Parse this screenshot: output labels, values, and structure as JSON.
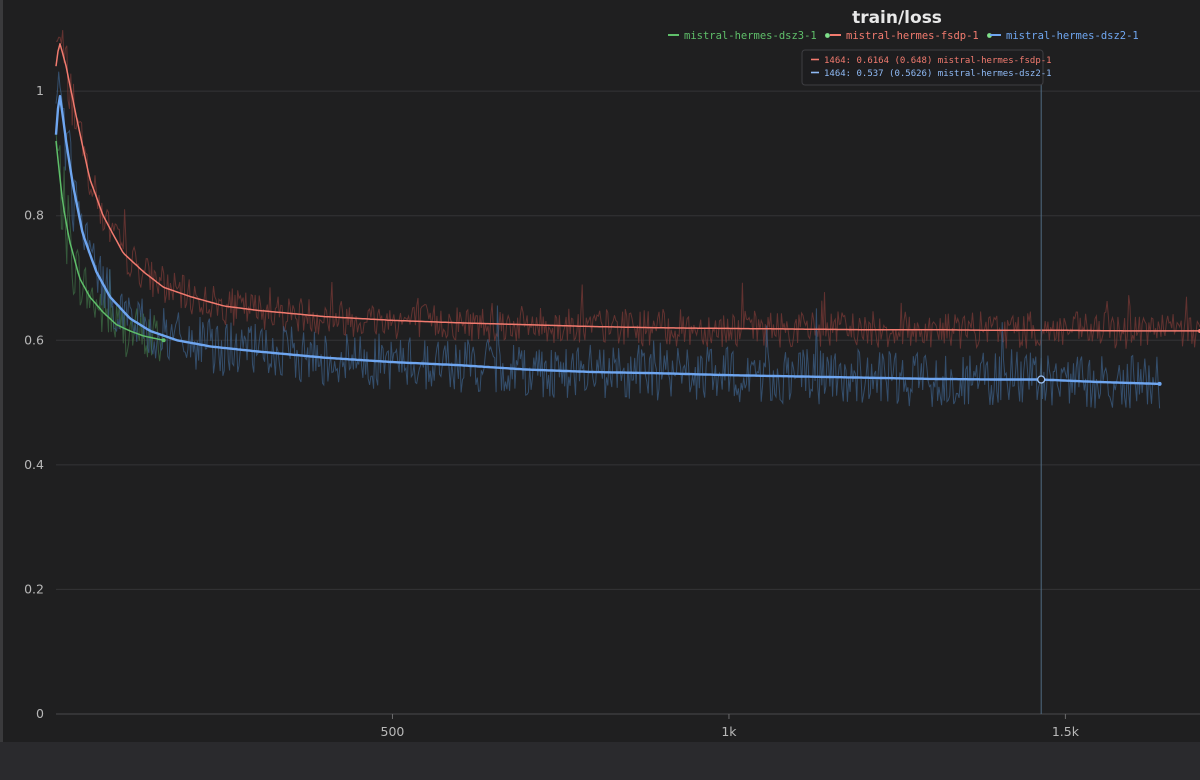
{
  "chart_data": {
    "type": "line",
    "title": "train/loss",
    "xlabel": "",
    "ylabel": "",
    "xlim": [
      0,
      1700
    ],
    "ylim": [
      0,
      1.05
    ],
    "xticks": [
      {
        "value": 500,
        "label": "500"
      },
      {
        "value": 1000,
        "label": "1k"
      },
      {
        "value": 1500,
        "label": "1.5k"
      }
    ],
    "yticks": [
      {
        "value": 0,
        "label": "0"
      },
      {
        "value": 0.2,
        "label": "0.2"
      },
      {
        "value": 0.4,
        "label": "0.4"
      },
      {
        "value": 0.6,
        "label": "0.6"
      },
      {
        "value": 0.8,
        "label": "0.8"
      },
      {
        "value": 1,
        "label": "1"
      }
    ],
    "grid": true,
    "legend_position": "top-center",
    "series": [
      {
        "name": "mistral-hermes-dsz3-1",
        "color": "#5fbf6a",
        "legend_dot": true,
        "noise": 0.045,
        "raw_peak": 0.89,
        "smoothed": [
          [
            0,
            0.92
          ],
          [
            10,
            0.82
          ],
          [
            20,
            0.76
          ],
          [
            35,
            0.7
          ],
          [
            50,
            0.67
          ],
          [
            70,
            0.645
          ],
          [
            90,
            0.625
          ],
          [
            110,
            0.615
          ],
          [
            130,
            0.607
          ],
          [
            160,
            0.6
          ]
        ]
      },
      {
        "name": "mistral-hermes-fsdp-1",
        "color": "#f27b6f",
        "legend_dot": true,
        "noise": 0.03,
        "raw_peak": 1.1,
        "smoothed": [
          [
            0,
            1.04
          ],
          [
            5,
            1.08
          ],
          [
            15,
            1.04
          ],
          [
            30,
            0.96
          ],
          [
            50,
            0.86
          ],
          [
            70,
            0.8
          ],
          [
            100,
            0.74
          ],
          [
            130,
            0.71
          ],
          [
            160,
            0.685
          ],
          [
            200,
            0.67
          ],
          [
            250,
            0.655
          ],
          [
            300,
            0.648
          ],
          [
            400,
            0.638
          ],
          [
            500,
            0.632
          ],
          [
            600,
            0.628
          ],
          [
            700,
            0.625
          ],
          [
            800,
            0.622
          ],
          [
            900,
            0.62
          ],
          [
            1000,
            0.619
          ],
          [
            1100,
            0.618
          ],
          [
            1200,
            0.617
          ],
          [
            1300,
            0.617
          ],
          [
            1400,
            0.616
          ],
          [
            1500,
            0.616
          ],
          [
            1600,
            0.615
          ],
          [
            1700,
            0.615
          ]
        ]
      },
      {
        "name": "mistral-hermes-dsz2-1",
        "color": "#6fa6f0",
        "legend_dot": false,
        "noise": 0.045,
        "raw_peak": 1.0,
        "smoothed": [
          [
            0,
            0.93
          ],
          [
            5,
            1.0
          ],
          [
            15,
            0.92
          ],
          [
            25,
            0.85
          ],
          [
            40,
            0.77
          ],
          [
            60,
            0.71
          ],
          [
            80,
            0.67
          ],
          [
            110,
            0.635
          ],
          [
            140,
            0.615
          ],
          [
            180,
            0.6
          ],
          [
            230,
            0.59
          ],
          [
            300,
            0.582
          ],
          [
            400,
            0.572
          ],
          [
            500,
            0.565
          ],
          [
            600,
            0.56
          ],
          [
            700,
            0.553
          ],
          [
            800,
            0.549
          ],
          [
            900,
            0.547
          ],
          [
            1000,
            0.544
          ],
          [
            1100,
            0.542
          ],
          [
            1200,
            0.54
          ],
          [
            1300,
            0.538
          ],
          [
            1400,
            0.537
          ],
          [
            1464,
            0.537
          ],
          [
            1550,
            0.533
          ],
          [
            1640,
            0.53
          ]
        ]
      }
    ],
    "hover": {
      "step": 1464,
      "rows": [
        {
          "series": "mistral-hermes-fsdp-1",
          "text": "1464: 0.6164 (0.648) mistral-hermes-fsdp-1",
          "color": "#f27b6f"
        },
        {
          "series": "mistral-hermes-dsz2-1",
          "text": "1464: 0.537 (0.5626) mistral-hermes-dsz2-1",
          "color": "#8fbaf5"
        }
      ]
    }
  }
}
